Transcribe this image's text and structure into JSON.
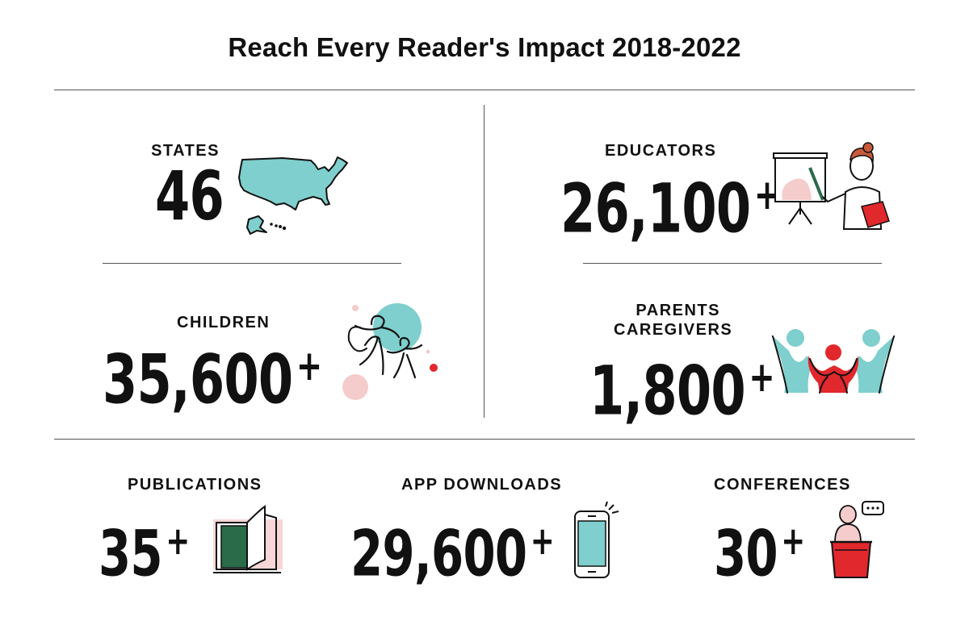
{
  "title": "Reach Every Reader's Impact 2018-2022",
  "colors": {
    "teal": "#7ecfcd",
    "red": "#e0282d",
    "pink": "#f4cccc",
    "green": "#2a6b4a",
    "line": "#555555",
    "text": "#111111"
  },
  "stats": {
    "states": {
      "label": "STATES",
      "value": "46",
      "plus": "",
      "icon": "us-map-icon"
    },
    "educators": {
      "label": "EDUCATORS",
      "value": "26,100",
      "plus": "+",
      "icon": "teacher-presenting-icon"
    },
    "children": {
      "label": "CHILDREN",
      "value": "35,600",
      "plus": "+",
      "icon": "children-playing-icon"
    },
    "parents": {
      "label_line1": "PARENTS",
      "label_line2": "CAREGIVERS",
      "value": "1,800",
      "plus": "+",
      "icon": "family-hug-icon"
    },
    "publications": {
      "label": "PUBLICATIONS",
      "value": "35",
      "plus": "+",
      "icon": "open-book-icon"
    },
    "app_downloads": {
      "label": "APP DOWNLOADS",
      "value": "29,600",
      "plus": "+",
      "icon": "smartphone-icon"
    },
    "conferences": {
      "label": "CONFERENCES",
      "value": "30",
      "plus": "+",
      "icon": "speaker-podium-icon"
    }
  }
}
